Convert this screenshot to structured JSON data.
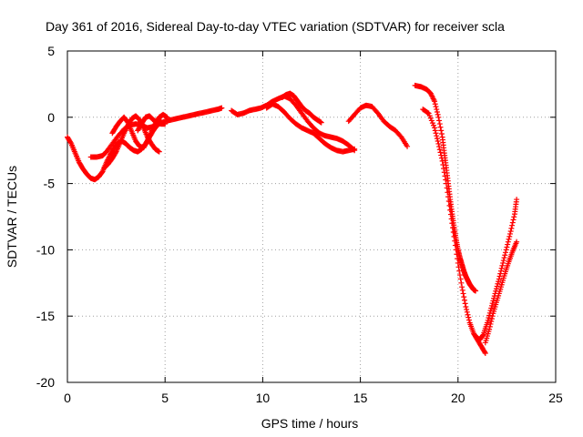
{
  "chart_data": {
    "type": "scatter",
    "title": "Day 361 of 2016, Sidereal Day-to-day VTEC variation (SDTVAR) for receiver scla",
    "xlabel": "GPS time / hours",
    "ylabel": "SDTVAR / TECUs",
    "xlim": [
      0,
      25
    ],
    "ylim": [
      -20,
      5
    ],
    "xticks": [
      0,
      5,
      10,
      15,
      20,
      25
    ],
    "yticks": [
      -20,
      -15,
      -10,
      -5,
      0,
      5
    ],
    "xtick_labels": [
      "0",
      "5",
      "10",
      "15",
      "20",
      "25"
    ],
    "ytick_labels": [
      "-20",
      "-15",
      "-10",
      "-5",
      "0",
      "5"
    ],
    "grid": true,
    "marker": "+",
    "color": "#ff0000",
    "series": [
      {
        "name": "arc-1",
        "x": [
          0.0,
          0.2,
          0.4,
          0.6,
          0.8,
          1.0,
          1.2,
          1.4,
          1.6,
          1.8,
          2.0,
          2.2,
          2.4,
          2.6,
          2.8,
          3.0,
          3.2,
          3.4,
          3.6,
          3.8,
          4.0,
          4.2,
          4.4,
          4.6,
          4.8
        ],
        "y": [
          -1.5,
          -2.0,
          -2.7,
          -3.4,
          -3.9,
          -4.3,
          -4.6,
          -4.7,
          -4.5,
          -4.1,
          -3.4,
          -2.8,
          -2.3,
          -1.9,
          -1.8,
          -2.0,
          -2.3,
          -2.5,
          -2.6,
          -2.4,
          -2.0,
          -1.5,
          -1.0,
          -0.6,
          -0.3
        ]
      },
      {
        "name": "arc-2",
        "x": [
          1.2,
          1.5,
          1.8,
          2.0,
          2.3,
          2.6,
          2.9,
          3.2,
          3.5,
          3.8,
          4.1,
          4.4,
          4.7,
          5.0,
          5.3,
          5.6,
          5.9,
          6.2,
          6.5,
          6.8,
          7.1,
          7.4,
          7.7,
          7.9
        ],
        "y": [
          -3.0,
          -3.0,
          -2.9,
          -2.6,
          -2.0,
          -1.4,
          -0.9,
          -0.6,
          -0.5,
          -0.6,
          -0.8,
          -0.7,
          -0.5,
          -0.3,
          -0.2,
          -0.1,
          0.0,
          0.1,
          0.2,
          0.3,
          0.4,
          0.5,
          0.6,
          0.7
        ]
      },
      {
        "name": "arc-3",
        "x": [
          1.9,
          2.1,
          2.3,
          2.5,
          2.7,
          2.9,
          3.1,
          3.3,
          3.5,
          3.7,
          3.9,
          4.1,
          4.3,
          4.5,
          4.7
        ],
        "y": [
          -3.8,
          -3.5,
          -3.1,
          -2.6,
          -1.9,
          -1.2,
          -0.6,
          -0.1,
          0.1,
          -0.2,
          -0.8,
          -1.5,
          -2.0,
          -2.4,
          -2.6
        ]
      },
      {
        "name": "arc-4",
        "x": [
          2.3,
          2.5,
          2.7,
          2.9,
          3.1,
          3.3,
          3.5,
          3.7,
          3.9,
          4.1,
          4.3,
          4.5,
          4.7,
          4.9,
          5.1
        ],
        "y": [
          -1.2,
          -0.7,
          -0.3,
          0.0,
          -0.4,
          -1.1,
          -1.8,
          -2.2,
          -2.3,
          -1.8,
          -1.1,
          -0.5,
          0.0,
          0.2,
          0.0
        ]
      },
      {
        "name": "arc-5",
        "x": [
          3.6,
          3.8,
          4.0,
          4.2,
          4.4,
          4.6,
          4.8,
          5.0
        ],
        "y": [
          -1.0,
          -0.5,
          0.0,
          0.1,
          -0.2,
          -0.4,
          -0.5,
          -0.5
        ]
      },
      {
        "name": "arc-6",
        "x": [
          8.4,
          8.7,
          9.0,
          9.3,
          9.6,
          9.9,
          10.2,
          10.5,
          10.8,
          11.1,
          11.4,
          11.7,
          12.0,
          12.3,
          12.6,
          12.9,
          13.2,
          13.5,
          13.8,
          14.1,
          14.4,
          14.7
        ],
        "y": [
          0.5,
          0.2,
          0.3,
          0.5,
          0.6,
          0.7,
          0.9,
          1.2,
          1.4,
          1.6,
          1.4,
          0.9,
          0.3,
          -0.3,
          -0.8,
          -1.2,
          -1.4,
          -1.5,
          -1.6,
          -1.8,
          -2.1,
          -2.5
        ]
      },
      {
        "name": "arc-7",
        "x": [
          10.2,
          10.5,
          10.8,
          11.1,
          11.4,
          11.7,
          12.0,
          12.3,
          12.6,
          12.9,
          13.2,
          13.5,
          13.8,
          14.1,
          14.4,
          14.7
        ],
        "y": [
          0.7,
          1.0,
          0.8,
          0.4,
          -0.1,
          -0.5,
          -0.8,
          -1.0,
          -1.2,
          -1.6,
          -2.0,
          -2.3,
          -2.5,
          -2.6,
          -2.5,
          -2.4
        ]
      },
      {
        "name": "arc-8",
        "x": [
          11.0,
          11.2,
          11.4,
          11.6,
          11.8,
          12.0,
          12.2,
          12.4,
          12.6,
          12.8,
          13.0
        ],
        "y": [
          1.5,
          1.7,
          1.8,
          1.6,
          1.2,
          0.8,
          0.5,
          0.3,
          0.0,
          -0.2,
          -0.4
        ]
      },
      {
        "name": "arc-9",
        "x": [
          14.4,
          14.7,
          15.0,
          15.3,
          15.6,
          15.9,
          16.2,
          16.5,
          16.8,
          17.1,
          17.4
        ],
        "y": [
          -0.3,
          0.2,
          0.7,
          0.9,
          0.8,
          0.3,
          -0.3,
          -0.7,
          -1.0,
          -1.5,
          -2.2
        ]
      },
      {
        "name": "arc-10",
        "x": [
          17.8,
          18.1,
          18.4,
          18.6,
          18.8,
          19.0,
          19.2,
          19.3,
          19.4,
          19.5,
          19.6,
          19.7,
          19.8,
          19.9,
          20.0,
          20.1,
          20.2,
          20.3,
          20.4,
          20.5,
          20.6,
          20.7,
          20.8,
          20.9
        ],
        "y": [
          2.4,
          2.3,
          2.1,
          1.8,
          1.2,
          0.0,
          -1.5,
          -2.7,
          -3.8,
          -5.0,
          -6.2,
          -7.3,
          -8.3,
          -9.2,
          -10.0,
          -10.6,
          -11.1,
          -11.6,
          -12.0,
          -12.3,
          -12.6,
          -12.8,
          -13.0,
          -13.1
        ]
      },
      {
        "name": "arc-11",
        "x": [
          18.2,
          18.5,
          18.8,
          19.0,
          19.2,
          19.4,
          19.6,
          19.8,
          20.0,
          20.2,
          20.4,
          20.6,
          20.8,
          21.0,
          21.2,
          21.4
        ],
        "y": [
          0.6,
          0.3,
          -0.8,
          -2.0,
          -3.3,
          -5.0,
          -7.0,
          -9.0,
          -11.0,
          -12.8,
          -14.3,
          -15.5,
          -16.3,
          -16.8,
          -17.3,
          -17.8
        ]
      },
      {
        "name": "arc-12",
        "x": [
          20.9,
          21.1,
          21.3,
          21.5,
          21.7,
          21.9,
          22.1,
          22.3,
          22.5,
          22.7,
          22.9,
          23.0
        ],
        "y": [
          -16.5,
          -16.8,
          -16.4,
          -15.5,
          -14.4,
          -13.3,
          -12.2,
          -11.0,
          -9.8,
          -8.6,
          -7.3,
          -6.2
        ]
      },
      {
        "name": "arc-13",
        "x": [
          21.4,
          21.6,
          21.8,
          22.0,
          22.2,
          22.4,
          22.6,
          22.8,
          23.0
        ],
        "y": [
          -17.0,
          -16.0,
          -14.8,
          -13.8,
          -12.8,
          -11.8,
          -10.9,
          -10.1,
          -9.4
        ]
      }
    ]
  }
}
